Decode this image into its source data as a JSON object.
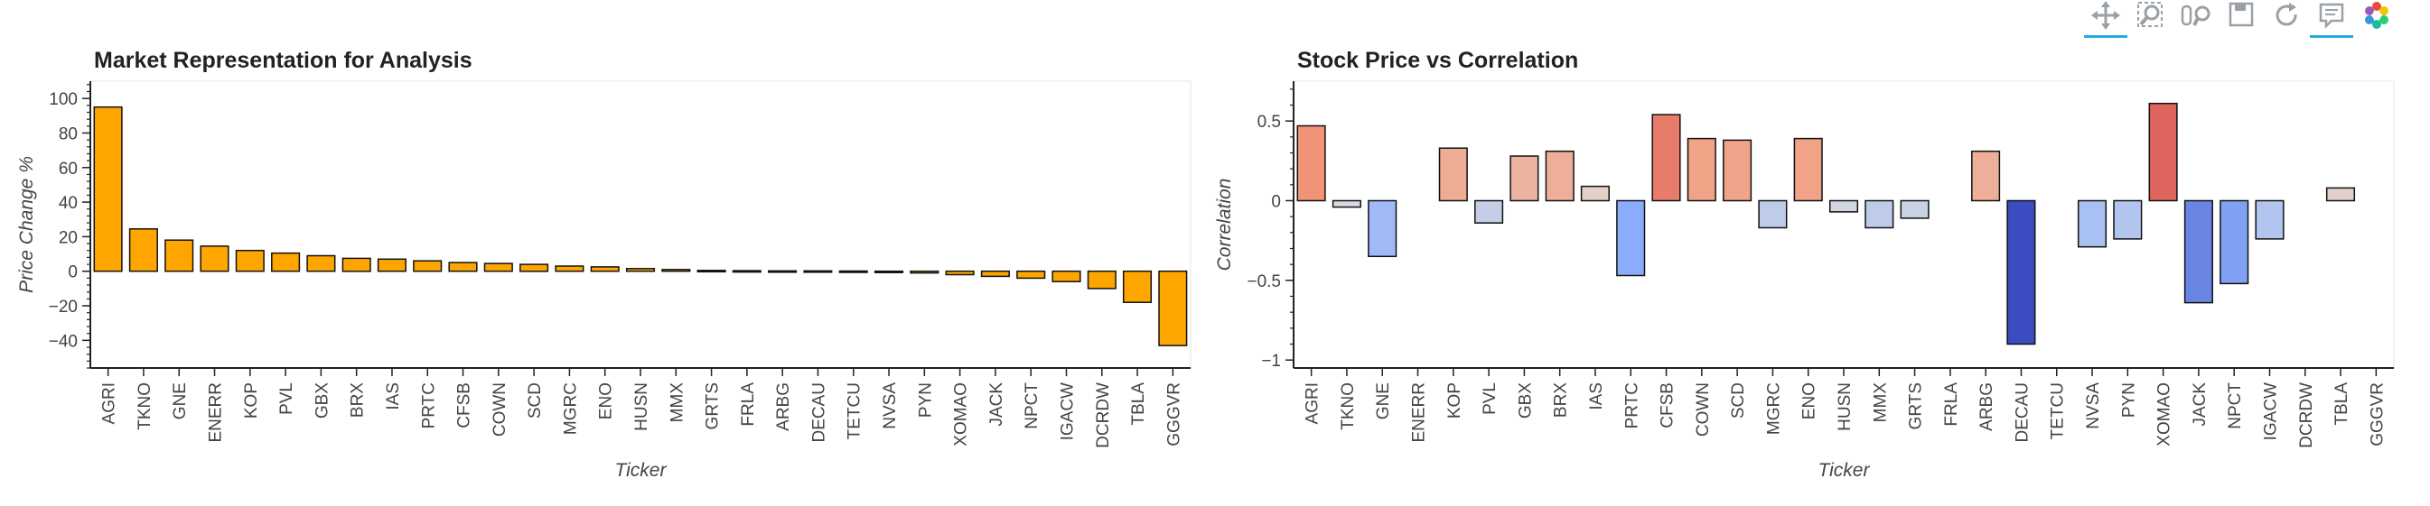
{
  "toolbar": {
    "tools": [
      {
        "name": "pan-tool",
        "icon": "pan-icon",
        "active": true
      },
      {
        "name": "box-zoom-tool",
        "icon": "box-zoom-icon",
        "active": false
      },
      {
        "name": "wheel-zoom-tool",
        "icon": "wheel-zoom-icon",
        "active": false
      },
      {
        "name": "save-tool",
        "icon": "save-icon",
        "active": false
      },
      {
        "name": "reset-tool",
        "icon": "reset-icon",
        "active": false
      },
      {
        "name": "hover-tool",
        "icon": "hover-icon",
        "active": true
      },
      {
        "name": "bokeh-logo",
        "icon": "bokeh-logo-icon",
        "active": false
      }
    ]
  },
  "chart_data": [
    {
      "type": "bar",
      "title": "Market Representation for Analysis",
      "xlabel": "Ticker",
      "ylabel": "Price Change %",
      "ylim": [
        -56,
        110
      ],
      "yticks": [
        -40,
        -20,
        0,
        20,
        40,
        60,
        80,
        100
      ],
      "grid": false,
      "bar_color": "#FFA500",
      "categories": [
        "AGRI",
        "TKNO",
        "GNE",
        "ENERR",
        "KOP",
        "PVL",
        "GBX",
        "BRX",
        "IAS",
        "PRTC",
        "CFSB",
        "COWN",
        "SCD",
        "MGRC",
        "ENO",
        "HUSN",
        "MMX",
        "GRTS",
        "FRLA",
        "ARBG",
        "DECAU",
        "TETCU",
        "NVSA",
        "PYN",
        "XOMAO",
        "JACK",
        "NPCT",
        "IGACW",
        "DCRDW",
        "TBLA",
        "GGGVR"
      ],
      "values": [
        95,
        24.5,
        18,
        14.5,
        12,
        10.5,
        9,
        7.5,
        7,
        6,
        5,
        4.5,
        4,
        3,
        2.5,
        1.5,
        1,
        0.5,
        0.3,
        0.2,
        0.2,
        0.1,
        -0.5,
        -1,
        -2,
        -3,
        -4,
        -6,
        -10,
        -18,
        -43
      ]
    },
    {
      "type": "bar",
      "title": "Stock Price vs Correlation",
      "xlabel": "Ticker",
      "ylabel": "Correlation",
      "ylim": [
        -1.05,
        0.75
      ],
      "yticks": [
        -1,
        -0.5,
        0,
        0.5
      ],
      "grid": false,
      "colormap": "coolwarm",
      "categories": [
        "AGRI",
        "TKNO",
        "GNE",
        "ENERR",
        "KOP",
        "PVL",
        "GBX",
        "BRX",
        "IAS",
        "PRTC",
        "CFSB",
        "COWN",
        "SCD",
        "MGRC",
        "ENO",
        "HUSN",
        "MMX",
        "GRTS",
        "FRLA",
        "ARBG",
        "DECAU",
        "TETCU",
        "NVSA",
        "PYN",
        "XOMAO",
        "JACK",
        "NPCT",
        "IGACW",
        "DCRDW",
        "TBLA",
        "GGGVR"
      ],
      "values": [
        0.47,
        -0.04,
        -0.35,
        0,
        0.33,
        -0.14,
        0.28,
        0.31,
        0.09,
        -0.47,
        0.54,
        0.39,
        0.38,
        -0.17,
        0.39,
        -0.07,
        -0.17,
        -0.11,
        0,
        0.31,
        -0.9,
        0,
        -0.29,
        -0.24,
        0.61,
        -0.64,
        -0.52,
        -0.24,
        0,
        0.08,
        0
      ]
    }
  ]
}
